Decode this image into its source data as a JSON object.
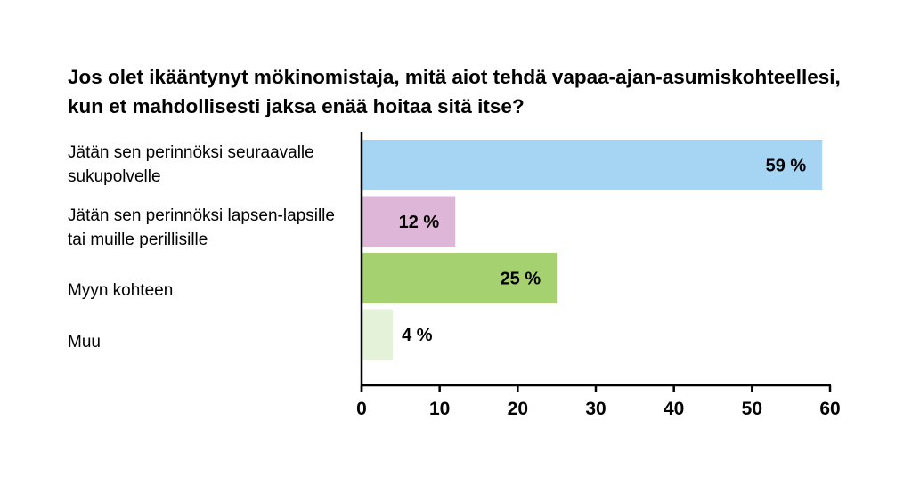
{
  "chart_data": {
    "type": "bar",
    "orientation": "horizontal",
    "title": "Jos olet ikääntynyt mökinomistaja, mitä aiot tehdä vapaa-ajan-asumiskohteellesi, kun et mahdollisesti jaksa enää hoitaa sitä itse?",
    "categories": [
      "Jätän sen perinnöksi seuraavalle sukupolvelle",
      "Jätän sen perinnöksi lapsen-lapsille tai muille perillisille",
      "Myyn kohteen",
      "Muu"
    ],
    "values": [
      59,
      12,
      25,
      4
    ],
    "data_labels": [
      "59 %",
      "12 %",
      "25 %",
      "4 %"
    ],
    "colors": [
      "#a5d5f2",
      "#deb6d8",
      "#a5d171",
      "#e4f2da"
    ],
    "xlim": [
      0,
      60
    ],
    "xticks": [
      0,
      10,
      20,
      30,
      40,
      50,
      60
    ],
    "grid": false,
    "legend": "none"
  }
}
